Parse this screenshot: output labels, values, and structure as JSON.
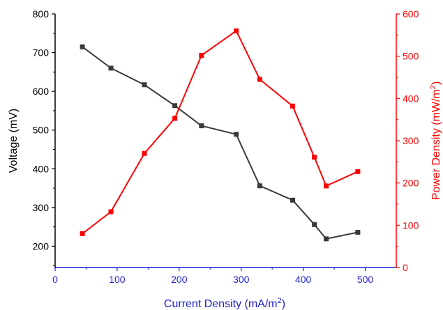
{
  "chart_data": {
    "type": "line",
    "xlabel": "Current Density (mA/m²)",
    "xlabel_main": "Current Density (mA/m",
    "xlabel_sup": "2",
    "xlabel_close": ")",
    "xlim": [
      0,
      550
    ],
    "x_ticks": [
      "0",
      "100",
      "200",
      "300",
      "400",
      "500"
    ],
    "x_tick_values": [
      0,
      100,
      200,
      300,
      400,
      500
    ],
    "y_left": {
      "label": "Voltage (mV)",
      "lim": [
        145,
        800
      ],
      "ticks": [
        "200",
        "300",
        "400",
        "500",
        "600",
        "700",
        "800"
      ],
      "tick_values": [
        200,
        300,
        400,
        500,
        600,
        700,
        800
      ]
    },
    "y_right": {
      "label": "Power Density (mW/m²)",
      "label_main": "Power Density (mW/m",
      "label_sup": "2",
      "label_close": ")",
      "lim": [
        0,
        600
      ],
      "ticks": [
        "0",
        "100",
        "200",
        "300",
        "400",
        "500",
        "600"
      ],
      "tick_values": [
        0,
        100,
        200,
        300,
        400,
        500,
        600
      ]
    },
    "colors": {
      "voltage": "#3a3a3a",
      "power": "#ff0000",
      "x_axis": "#1f1fcc",
      "left_axis": "#000000",
      "right_axis": "#ff0000"
    },
    "grid": false,
    "legend": "none",
    "series": [
      {
        "axis": "left",
        "color_key": "voltage",
        "x": [
          44,
          90,
          144,
          193,
          236,
          292,
          330,
          383,
          418,
          437,
          488
        ],
        "y": [
          715,
          660,
          617,
          563,
          511,
          489,
          356,
          319,
          256,
          219,
          236
        ]
      },
      {
        "axis": "right",
        "color_key": "power",
        "x": [
          44,
          90,
          144,
          193,
          236,
          292,
          330,
          383,
          418,
          437,
          488
        ],
        "y": [
          80,
          132,
          270,
          353,
          502,
          560,
          445,
          382,
          261,
          193,
          227
        ]
      }
    ]
  }
}
